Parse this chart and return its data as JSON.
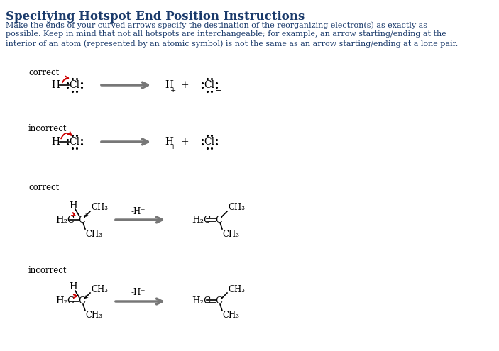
{
  "title": "Specifying Hotspot End Position Instructions",
  "title_color": "#1a3a6b",
  "body_color": "#1a3a6b",
  "bg_color": "#ffffff",
  "red": "#cc0000",
  "black": "#000000",
  "gray": "#777777",
  "body_lines": [
    "Make the ends of your curved arrows specify the destination of the reorganizing electron(s) as exactly as",
    "possible. Keep in mind that not all hotspots are interchangeable; for example, an arrow starting/ending at the",
    "interior of an atom (represented by an atomic symbol) is not the same as an arrow starting/ending at a lone pair."
  ]
}
